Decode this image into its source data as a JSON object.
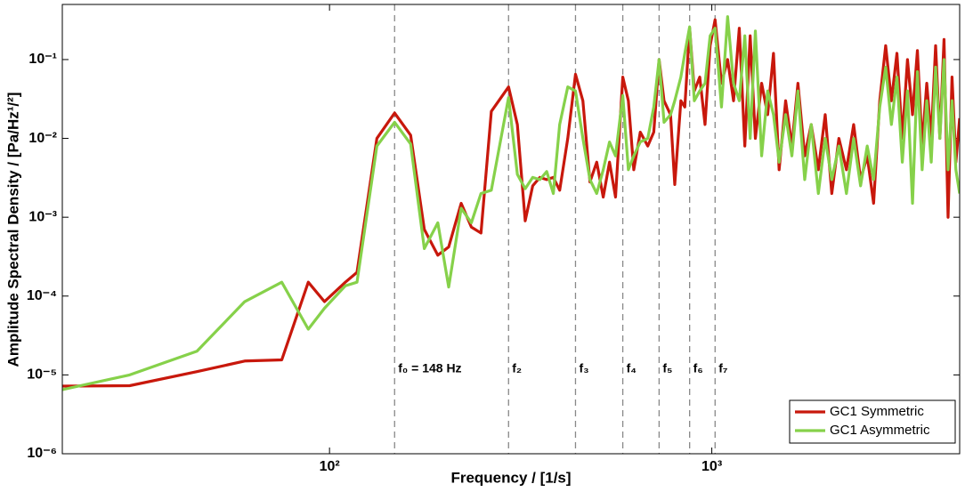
{
  "chart_data": {
    "type": "line",
    "xlabel": "Frequency / [1/s]",
    "ylabel": "Amplitude Spectral Density / [Pa/Hz¹/²]",
    "xscale": "log",
    "yscale": "log",
    "xlim": [
      20,
      4450
    ],
    "ylim": [
      1e-06,
      0.5
    ],
    "xticks": [
      {
        "value": 100,
        "label": "10²"
      },
      {
        "value": 1000,
        "label": "10³"
      }
    ],
    "yticks": [
      {
        "value": 1e-06,
        "label": "10⁻⁶"
      },
      {
        "value": 1e-05,
        "label": "10⁻⁵"
      },
      {
        "value": 0.0001,
        "label": "10⁻⁴"
      },
      {
        "value": 0.001,
        "label": "10⁻³"
      },
      {
        "value": 0.01,
        "label": "10⁻²"
      },
      {
        "value": 0.1,
        "label": "10⁻¹"
      }
    ],
    "legend": "lower right",
    "annotations": [
      {
        "label": "f₀ = 148 Hz",
        "x": 148
      },
      {
        "label": "f₂",
        "x": 294
      },
      {
        "label": "f₃",
        "x": 440
      },
      {
        "label": "f₄",
        "x": 585
      },
      {
        "label": "f₅",
        "x": 728
      },
      {
        "label": "f₆",
        "x": 875
      },
      {
        "label": "f₇",
        "x": 1020
      }
    ],
    "x": [
      20,
      30,
      45,
      60,
      75,
      88,
      97,
      110,
      118,
      133,
      148,
      163,
      177,
      192,
      205,
      221,
      235,
      249,
      265,
      294,
      310,
      325,
      340,
      355,
      370,
      385,
      400,
      420,
      440,
      460,
      480,
      500,
      520,
      540,
      560,
      585,
      605,
      625,
      650,
      680,
      705,
      728,
      750,
      780,
      800,
      830,
      850,
      875,
      900,
      930,
      960,
      990,
      1020,
      1060,
      1100,
      1140,
      1180,
      1220,
      1260,
      1300,
      1350,
      1400,
      1450,
      1500,
      1560,
      1620,
      1680,
      1750,
      1820,
      1900,
      1980,
      2060,
      2150,
      2250,
      2350,
      2450,
      2550,
      2650,
      2750,
      2850,
      2950,
      3050,
      3150,
      3250,
      3350,
      3450,
      3550,
      3650,
      3750,
      3850,
      3950,
      4050,
      4150,
      4250,
      4350,
      4450
    ],
    "series": [
      {
        "name": "GC1 Symmetric",
        "color": "#c8180c",
        "values": [
          7.2e-06,
          7.3e-06,
          1.1e-05,
          1.5e-05,
          1.55e-05,
          0.00015,
          8.5e-05,
          0.00015,
          0.0002,
          0.01,
          0.021,
          0.011,
          0.0007,
          0.00033,
          0.00042,
          0.0015,
          0.00075,
          0.00063,
          0.022,
          0.045,
          0.015,
          0.0009,
          0.0025,
          0.0032,
          0.003,
          0.0032,
          0.0022,
          0.01,
          0.065,
          0.03,
          0.0028,
          0.005,
          0.0018,
          0.005,
          0.0018,
          0.06,
          0.03,
          0.004,
          0.012,
          0.008,
          0.012,
          0.1,
          0.03,
          0.02,
          0.0026,
          0.03,
          0.025,
          0.25,
          0.04,
          0.06,
          0.015,
          0.15,
          0.32,
          0.05,
          0.1,
          0.03,
          0.25,
          0.008,
          0.2,
          0.01,
          0.05,
          0.02,
          0.12,
          0.004,
          0.03,
          0.008,
          0.05,
          0.006,
          0.015,
          0.004,
          0.02,
          0.002,
          0.01,
          0.004,
          0.015,
          0.003,
          0.006,
          0.0015,
          0.03,
          0.15,
          0.03,
          0.12,
          0.01,
          0.1,
          0.02,
          0.13,
          0.008,
          0.05,
          0.01,
          0.15,
          0.01,
          0.18,
          0.001,
          0.06,
          0.005,
          0.018
        ]
      },
      {
        "name": "GC1 Asymmetric",
        "color": "#86d14a",
        "values": [
          6.5e-06,
          1e-05,
          2e-05,
          8.5e-05,
          0.00015,
          3.8e-05,
          7e-05,
          0.000135,
          0.00015,
          0.008,
          0.016,
          0.0085,
          0.0004,
          0.00085,
          0.00013,
          0.0013,
          0.00085,
          0.002,
          0.0022,
          0.033,
          0.0035,
          0.0023,
          0.0032,
          0.003,
          0.0038,
          0.002,
          0.015,
          0.045,
          0.04,
          0.01,
          0.003,
          0.002,
          0.004,
          0.009,
          0.006,
          0.035,
          0.004,
          0.006,
          0.009,
          0.01,
          0.025,
          0.1,
          0.016,
          0.02,
          0.03,
          0.06,
          0.12,
          0.26,
          0.03,
          0.04,
          0.05,
          0.2,
          0.25,
          0.025,
          0.35,
          0.05,
          0.03,
          0.2,
          0.01,
          0.23,
          0.006,
          0.04,
          0.02,
          0.005,
          0.02,
          0.006,
          0.04,
          0.003,
          0.015,
          0.002,
          0.01,
          0.003,
          0.008,
          0.002,
          0.01,
          0.0025,
          0.008,
          0.003,
          0.025,
          0.08,
          0.015,
          0.06,
          0.005,
          0.04,
          0.0015,
          0.07,
          0.004,
          0.03,
          0.005,
          0.08,
          0.01,
          0.1,
          0.004,
          0.03,
          0.004,
          0.002
        ]
      }
    ]
  }
}
